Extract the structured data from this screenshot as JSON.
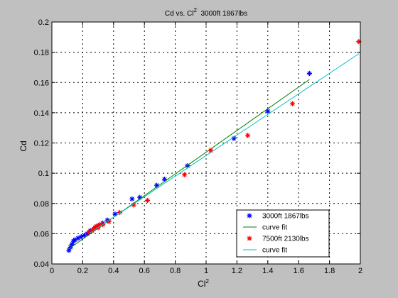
{
  "chart_data": {
    "type": "scatter",
    "title": "Cd vs. Cl^2  3000ft 1867lbs",
    "title_parts": {
      "pre": "Cd vs. Cl",
      "sup": "2",
      "post": "  3000ft 1867lbs"
    },
    "xlabel": "Cl^2",
    "xlabel_parts": {
      "base": "Cl",
      "sup": "2"
    },
    "ylabel": "Cd",
    "xlim": [
      0,
      2
    ],
    "ylim": [
      0.04,
      0.2
    ],
    "x_ticks": [
      "0",
      "0.2",
      "0.4",
      "0.6",
      "0.8",
      "1",
      "1.2",
      "1.4",
      "1.6",
      "1.8",
      "2"
    ],
    "y_ticks": [
      "0.04",
      "0.06",
      "0.08",
      "0.1",
      "0.12",
      "0.14",
      "0.16",
      "0.18",
      "0.2"
    ],
    "grid": true,
    "grid_style": "dotted",
    "legend_position": "bottom-right",
    "series": [
      {
        "name": "3000ft 1867lbs",
        "kind": "scatter",
        "marker": "*",
        "color": "#0000ff",
        "points": [
          [
            0.11,
            0.049
          ],
          [
            0.12,
            0.051
          ],
          [
            0.13,
            0.053
          ],
          [
            0.14,
            0.055
          ],
          [
            0.15,
            0.056
          ],
          [
            0.17,
            0.057
          ],
          [
            0.19,
            0.058
          ],
          [
            0.21,
            0.059
          ],
          [
            0.23,
            0.06
          ],
          [
            0.25,
            0.062
          ],
          [
            0.28,
            0.064
          ],
          [
            0.3,
            0.065
          ],
          [
            0.33,
            0.067
          ],
          [
            0.36,
            0.069
          ],
          [
            0.41,
            0.073
          ],
          [
            0.52,
            0.083
          ],
          [
            0.57,
            0.084
          ],
          [
            0.68,
            0.092
          ],
          [
            0.73,
            0.096
          ],
          [
            0.88,
            0.105
          ],
          [
            1.18,
            0.123
          ],
          [
            1.4,
            0.141
          ],
          [
            1.67,
            0.166
          ]
        ]
      },
      {
        "name": "curve fit",
        "kind": "line",
        "color": "#008000",
        "points": [
          [
            0.11,
            0.05
          ],
          [
            1.67,
            0.162
          ]
        ]
      },
      {
        "name": "7500ft 2130lbs",
        "kind": "scatter",
        "marker": "*",
        "color": "#ff0000",
        "points": [
          [
            0.24,
            0.061
          ],
          [
            0.26,
            0.062
          ],
          [
            0.27,
            0.063
          ],
          [
            0.28,
            0.064
          ],
          [
            0.29,
            0.065
          ],
          [
            0.3,
            0.064
          ],
          [
            0.31,
            0.066
          ],
          [
            0.33,
            0.066
          ],
          [
            0.37,
            0.068
          ],
          [
            0.44,
            0.074
          ],
          [
            0.53,
            0.079
          ],
          [
            0.62,
            0.082
          ],
          [
            0.86,
            0.099
          ],
          [
            1.03,
            0.115
          ],
          [
            1.27,
            0.125
          ],
          [
            1.56,
            0.146
          ],
          [
            1.99,
            0.187
          ]
        ]
      },
      {
        "name": "curve fit",
        "kind": "line",
        "color": "#00c0c0",
        "points": [
          [
            0.24,
            0.06
          ],
          [
            1.99,
            0.179
          ]
        ]
      }
    ]
  }
}
